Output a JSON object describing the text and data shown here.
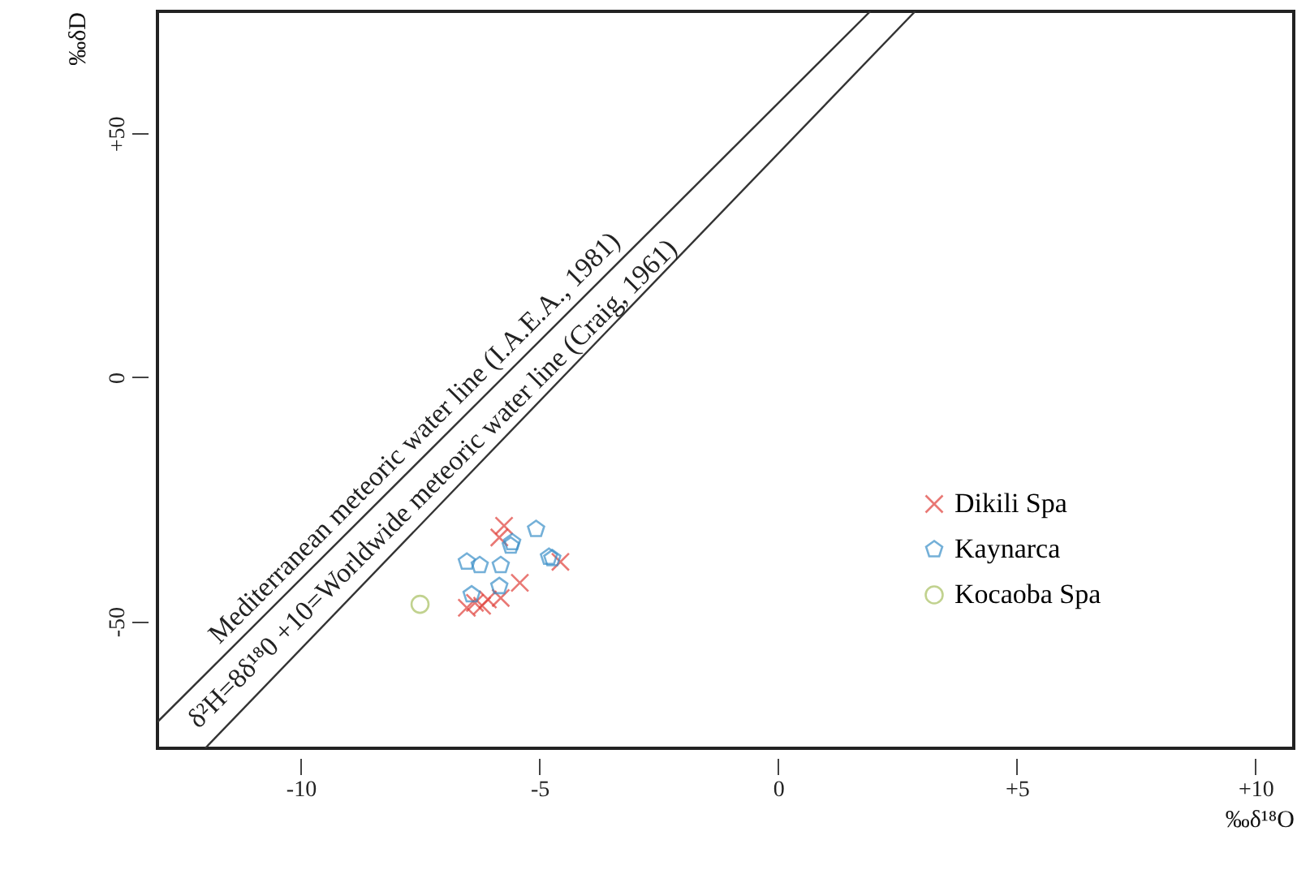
{
  "chart_data": {
    "type": "scatter",
    "xlabel": "‰δ¹⁸O",
    "ylabel": "‰δD",
    "xlim": [
      -13,
      10.8
    ],
    "ylim": [
      -76,
      75
    ],
    "xticks": [
      {
        "value": -10,
        "label": "-10"
      },
      {
        "value": -5,
        "label": "-5"
      },
      0,
      {
        "value": 5,
        "label": "+5"
      },
      {
        "value": 10,
        "label": "+10"
      }
    ],
    "yticks": [
      {
        "value": -50,
        "label": "-50"
      },
      0,
      {
        "value": 50,
        "label": "+50"
      }
    ],
    "grid": false,
    "legend": "right",
    "annotations": [
      "Mediterranean  meteoric water line (I.A.E.A., 1981)",
      "δ²H=8δ¹⁸0 +10=Worldwide meteoric water line (Craig, 1961)"
    ],
    "series": [
      {
        "type": "line",
        "color": "#333333",
        "line_style": "solid",
        "x": [
          -13,
          1.93
        ],
        "values": [
          -70.6,
          75
        ]
      },
      {
        "type": "line",
        "color": "#333333",
        "line_style": "solid",
        "x": [
          -12.0,
          2.87
        ],
        "values": [
          -76,
          75
        ]
      },
      {
        "name": "Dikili Spa",
        "color": "#e0403a",
        "marker": "cross",
        "x": [
          -5.74,
          -5.84,
          -4.56,
          -5.41,
          -6.52,
          -6.35,
          -6.08,
          -5.81,
          -6.2
        ],
        "values": [
          -30.4,
          -32.8,
          -37.8,
          -42.1,
          -47.2,
          -46.2,
          -45.5,
          -45.2,
          -46.8
        ]
      },
      {
        "name": "Kaynarca",
        "color": "#3a8fc8",
        "x": [
          -5.07,
          -5.57,
          -6.52,
          -6.25,
          -5.81,
          -4.8,
          -4.73,
          -6.42,
          -5.84,
          -5.6
        ],
        "values": [
          -31.1,
          -33.8,
          -37.8,
          -38.5,
          -38.5,
          -36.8,
          -37.1,
          -44.5,
          -42.8,
          -34.5
        ]
      },
      {
        "name": "Kocaoba Spa",
        "color": "#a8c060",
        "marker": "circle",
        "x": [
          -7.5
        ],
        "values": [
          -46.5
        ]
      }
    ]
  }
}
